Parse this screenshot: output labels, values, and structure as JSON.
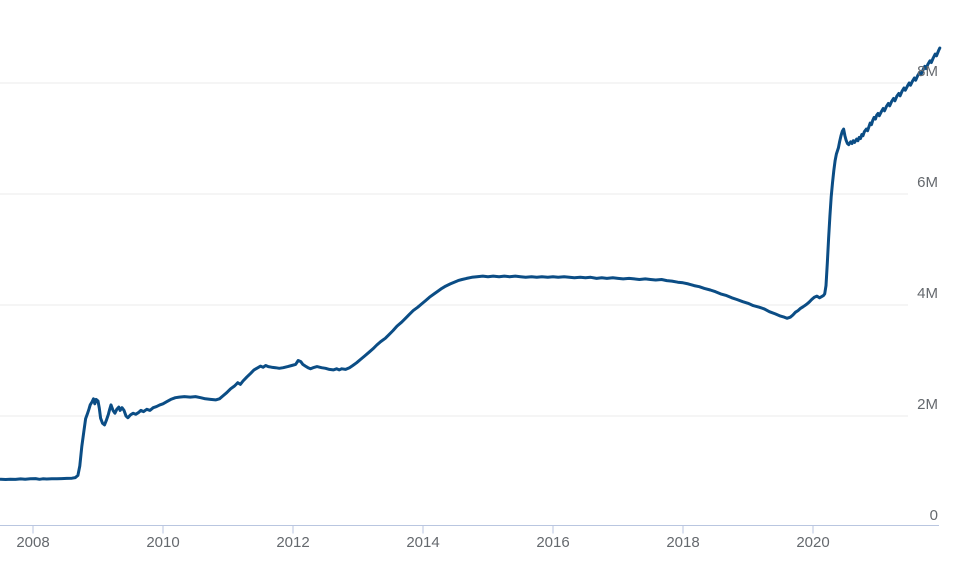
{
  "chart_data": {
    "type": "line",
    "title": "",
    "x_axis": {
      "tick_labels": [
        "2008",
        "2010",
        "2012",
        "2014",
        "2016",
        "2018",
        "2020"
      ],
      "tick_values": [
        2008,
        2010,
        2012,
        2014,
        2016,
        2018,
        2020
      ],
      "range": [
        2007.49,
        2021.97
      ],
      "grid": false
    },
    "y_axis": {
      "tick_labels": [
        "0",
        "2M",
        "4M",
        "6M",
        "8M"
      ],
      "tick_values": [
        0,
        2,
        4,
        6,
        8
      ],
      "range": [
        0,
        9.5
      ],
      "grid": true,
      "labels_position": "right"
    },
    "legend": "none",
    "series": [
      {
        "points": [
          [
            2007.5,
            0.86
          ],
          [
            2007.58,
            0.855
          ],
          [
            2007.65,
            0.862
          ],
          [
            2007.73,
            0.858
          ],
          [
            2007.81,
            0.866
          ],
          [
            2007.88,
            0.862
          ],
          [
            2007.96,
            0.87
          ],
          [
            2008.04,
            0.872
          ],
          [
            2008.1,
            0.86
          ],
          [
            2008.15,
            0.868
          ],
          [
            2008.21,
            0.865
          ],
          [
            2008.29,
            0.87
          ],
          [
            2008.37,
            0.868
          ],
          [
            2008.44,
            0.872
          ],
          [
            2008.52,
            0.875
          ],
          [
            2008.6,
            0.88
          ],
          [
            2008.65,
            0.89
          ],
          [
            2008.69,
            0.93
          ],
          [
            2008.72,
            1.1
          ],
          [
            2008.75,
            1.45
          ],
          [
            2008.78,
            1.7
          ],
          [
            2008.81,
            1.95
          ],
          [
            2008.84,
            2.05
          ],
          [
            2008.86,
            2.12
          ],
          [
            2008.88,
            2.2
          ],
          [
            2008.91,
            2.26
          ],
          [
            2008.93,
            2.31
          ],
          [
            2008.95,
            2.22
          ],
          [
            2008.97,
            2.3
          ],
          [
            2009.0,
            2.27
          ],
          [
            2009.02,
            2.14
          ],
          [
            2009.04,
            1.96
          ],
          [
            2009.07,
            1.87
          ],
          [
            2009.1,
            1.84
          ],
          [
            2009.13,
            1.93
          ],
          [
            2009.16,
            2.03
          ],
          [
            2009.18,
            2.12
          ],
          [
            2009.2,
            2.2
          ],
          [
            2009.23,
            2.1
          ],
          [
            2009.26,
            2.05
          ],
          [
            2009.29,
            2.12
          ],
          [
            2009.32,
            2.16
          ],
          [
            2009.34,
            2.1
          ],
          [
            2009.37,
            2.15
          ],
          [
            2009.4,
            2.1
          ],
          [
            2009.43,
            2.0
          ],
          [
            2009.46,
            1.97
          ],
          [
            2009.5,
            2.02
          ],
          [
            2009.54,
            2.05
          ],
          [
            2009.58,
            2.03
          ],
          [
            2009.62,
            2.06
          ],
          [
            2009.66,
            2.1
          ],
          [
            2009.7,
            2.08
          ],
          [
            2009.75,
            2.12
          ],
          [
            2009.8,
            2.1
          ],
          [
            2009.85,
            2.15
          ],
          [
            2009.9,
            2.17
          ],
          [
            2009.95,
            2.2
          ],
          [
            2010.0,
            2.22
          ],
          [
            2010.06,
            2.26
          ],
          [
            2010.12,
            2.3
          ],
          [
            2010.19,
            2.33
          ],
          [
            2010.25,
            2.34
          ],
          [
            2010.33,
            2.35
          ],
          [
            2010.42,
            2.34
          ],
          [
            2010.5,
            2.35
          ],
          [
            2010.58,
            2.33
          ],
          [
            2010.65,
            2.31
          ],
          [
            2010.73,
            2.3
          ],
          [
            2010.81,
            2.29
          ],
          [
            2010.87,
            2.31
          ],
          [
            2010.92,
            2.36
          ],
          [
            2010.98,
            2.42
          ],
          [
            2011.04,
            2.49
          ],
          [
            2011.1,
            2.54
          ],
          [
            2011.15,
            2.6
          ],
          [
            2011.19,
            2.57
          ],
          [
            2011.23,
            2.63
          ],
          [
            2011.29,
            2.7
          ],
          [
            2011.35,
            2.77
          ],
          [
            2011.4,
            2.83
          ],
          [
            2011.46,
            2.87
          ],
          [
            2011.5,
            2.9
          ],
          [
            2011.54,
            2.88
          ],
          [
            2011.58,
            2.91
          ],
          [
            2011.62,
            2.89
          ],
          [
            2011.67,
            2.88
          ],
          [
            2011.73,
            2.87
          ],
          [
            2011.79,
            2.86
          ],
          [
            2011.85,
            2.87
          ],
          [
            2011.92,
            2.89
          ],
          [
            2011.98,
            2.91
          ],
          [
            2012.04,
            2.93
          ],
          [
            2012.08,
            3.0
          ],
          [
            2012.12,
            2.98
          ],
          [
            2012.15,
            2.93
          ],
          [
            2012.19,
            2.9
          ],
          [
            2012.23,
            2.87
          ],
          [
            2012.27,
            2.85
          ],
          [
            2012.31,
            2.87
          ],
          [
            2012.37,
            2.89
          ],
          [
            2012.44,
            2.87
          ],
          [
            2012.5,
            2.86
          ],
          [
            2012.56,
            2.84
          ],
          [
            2012.62,
            2.83
          ],
          [
            2012.67,
            2.85
          ],
          [
            2012.71,
            2.83
          ],
          [
            2012.75,
            2.85
          ],
          [
            2012.81,
            2.84
          ],
          [
            2012.87,
            2.87
          ],
          [
            2012.92,
            2.91
          ],
          [
            2012.98,
            2.96
          ],
          [
            2013.04,
            3.02
          ],
          [
            2013.1,
            3.08
          ],
          [
            2013.17,
            3.15
          ],
          [
            2013.23,
            3.21
          ],
          [
            2013.29,
            3.28
          ],
          [
            2013.35,
            3.34
          ],
          [
            2013.42,
            3.4
          ],
          [
            2013.48,
            3.47
          ],
          [
            2013.54,
            3.54
          ],
          [
            2013.6,
            3.62
          ],
          [
            2013.67,
            3.69
          ],
          [
            2013.73,
            3.76
          ],
          [
            2013.79,
            3.83
          ],
          [
            2013.85,
            3.9
          ],
          [
            2013.92,
            3.96
          ],
          [
            2013.98,
            4.02
          ],
          [
            2014.04,
            4.08
          ],
          [
            2014.1,
            4.14
          ],
          [
            2014.17,
            4.2
          ],
          [
            2014.23,
            4.25
          ],
          [
            2014.29,
            4.3
          ],
          [
            2014.35,
            4.34
          ],
          [
            2014.42,
            4.38
          ],
          [
            2014.48,
            4.41
          ],
          [
            2014.54,
            4.44
          ],
          [
            2014.6,
            4.46
          ],
          [
            2014.67,
            4.48
          ],
          [
            2014.75,
            4.5
          ],
          [
            2014.83,
            4.51
          ],
          [
            2014.92,
            4.52
          ],
          [
            2015.0,
            4.51
          ],
          [
            2015.08,
            4.52
          ],
          [
            2015.17,
            4.51
          ],
          [
            2015.25,
            4.52
          ],
          [
            2015.33,
            4.51
          ],
          [
            2015.42,
            4.52
          ],
          [
            2015.5,
            4.51
          ],
          [
            2015.58,
            4.5
          ],
          [
            2015.67,
            4.51
          ],
          [
            2015.75,
            4.5
          ],
          [
            2015.83,
            4.51
          ],
          [
            2015.92,
            4.5
          ],
          [
            2016.0,
            4.51
          ],
          [
            2016.08,
            4.5
          ],
          [
            2016.17,
            4.51
          ],
          [
            2016.25,
            4.5
          ],
          [
            2016.33,
            4.49
          ],
          [
            2016.42,
            4.5
          ],
          [
            2016.5,
            4.49
          ],
          [
            2016.58,
            4.5
          ],
          [
            2016.67,
            4.48
          ],
          [
            2016.75,
            4.49
          ],
          [
            2016.83,
            4.48
          ],
          [
            2016.92,
            4.49
          ],
          [
            2017.0,
            4.48
          ],
          [
            2017.08,
            4.47
          ],
          [
            2017.17,
            4.48
          ],
          [
            2017.25,
            4.47
          ],
          [
            2017.33,
            4.46
          ],
          [
            2017.42,
            4.47
          ],
          [
            2017.5,
            4.46
          ],
          [
            2017.58,
            4.45
          ],
          [
            2017.67,
            4.46
          ],
          [
            2017.75,
            4.44
          ],
          [
            2017.83,
            4.43
          ],
          [
            2017.92,
            4.41
          ],
          [
            2018.0,
            4.4
          ],
          [
            2018.08,
            4.38
          ],
          [
            2018.17,
            4.35
          ],
          [
            2018.25,
            4.33
          ],
          [
            2018.33,
            4.3
          ],
          [
            2018.42,
            4.27
          ],
          [
            2018.5,
            4.24
          ],
          [
            2018.58,
            4.2
          ],
          [
            2018.67,
            4.17
          ],
          [
            2018.75,
            4.13
          ],
          [
            2018.83,
            4.1
          ],
          [
            2018.92,
            4.06
          ],
          [
            2019.0,
            4.03
          ],
          [
            2019.08,
            3.99
          ],
          [
            2019.17,
            3.96
          ],
          [
            2019.25,
            3.93
          ],
          [
            2019.33,
            3.88
          ],
          [
            2019.42,
            3.84
          ],
          [
            2019.5,
            3.8
          ],
          [
            2019.56,
            3.78
          ],
          [
            2019.6,
            3.76
          ],
          [
            2019.65,
            3.78
          ],
          [
            2019.69,
            3.82
          ],
          [
            2019.73,
            3.87
          ],
          [
            2019.77,
            3.9
          ],
          [
            2019.81,
            3.94
          ],
          [
            2019.85,
            3.97
          ],
          [
            2019.9,
            4.01
          ],
          [
            2019.94,
            4.05
          ],
          [
            2019.98,
            4.1
          ],
          [
            2020.02,
            4.14
          ],
          [
            2020.06,
            4.16
          ],
          [
            2020.1,
            4.13
          ],
          [
            2020.13,
            4.15
          ],
          [
            2020.16,
            4.17
          ],
          [
            2020.18,
            4.2
          ],
          [
            2020.2,
            4.35
          ],
          [
            2020.22,
            4.75
          ],
          [
            2020.24,
            5.2
          ],
          [
            2020.26,
            5.6
          ],
          [
            2020.28,
            5.95
          ],
          [
            2020.3,
            6.2
          ],
          [
            2020.32,
            6.42
          ],
          [
            2020.34,
            6.6
          ],
          [
            2020.36,
            6.72
          ],
          [
            2020.39,
            6.83
          ],
          [
            2020.41,
            6.95
          ],
          [
            2020.43,
            7.05
          ],
          [
            2020.45,
            7.13
          ],
          [
            2020.47,
            7.17
          ],
          [
            2020.49,
            7.05
          ],
          [
            2020.51,
            6.97
          ],
          [
            2020.53,
            6.91
          ],
          [
            2020.55,
            6.89
          ],
          [
            2020.58,
            6.94
          ],
          [
            2020.6,
            6.91
          ],
          [
            2020.62,
            6.96
          ],
          [
            2020.64,
            6.93
          ],
          [
            2020.67,
            6.99
          ],
          [
            2020.69,
            6.96
          ],
          [
            2020.71,
            7.02
          ],
          [
            2020.73,
            7.0
          ],
          [
            2020.75,
            7.07
          ],
          [
            2020.77,
            7.05
          ],
          [
            2020.79,
            7.12
          ],
          [
            2020.82,
            7.17
          ],
          [
            2020.84,
            7.14
          ],
          [
            2020.86,
            7.21
          ],
          [
            2020.88,
            7.28
          ],
          [
            2020.9,
            7.25
          ],
          [
            2020.92,
            7.33
          ],
          [
            2020.94,
            7.38
          ],
          [
            2020.96,
            7.35
          ],
          [
            2020.98,
            7.42
          ],
          [
            2021.0,
            7.45
          ],
          [
            2021.02,
            7.41
          ],
          [
            2021.05,
            7.48
          ],
          [
            2021.08,
            7.54
          ],
          [
            2021.1,
            7.5
          ],
          [
            2021.13,
            7.58
          ],
          [
            2021.16,
            7.63
          ],
          [
            2021.18,
            7.59
          ],
          [
            2021.21,
            7.67
          ],
          [
            2021.24,
            7.72
          ],
          [
            2021.26,
            7.68
          ],
          [
            2021.29,
            7.76
          ],
          [
            2021.32,
            7.81
          ],
          [
            2021.34,
            7.77
          ],
          [
            2021.37,
            7.85
          ],
          [
            2021.4,
            7.91
          ],
          [
            2021.42,
            7.87
          ],
          [
            2021.45,
            7.94
          ],
          [
            2021.48,
            8.0
          ],
          [
            2021.5,
            7.96
          ],
          [
            2021.53,
            8.03
          ],
          [
            2021.56,
            8.09
          ],
          [
            2021.58,
            8.05
          ],
          [
            2021.61,
            8.13
          ],
          [
            2021.64,
            8.19
          ],
          [
            2021.66,
            8.15
          ],
          [
            2021.69,
            8.23
          ],
          [
            2021.72,
            8.3
          ],
          [
            2021.74,
            8.26
          ],
          [
            2021.77,
            8.34
          ],
          [
            2021.8,
            8.4
          ],
          [
            2021.82,
            8.37
          ],
          [
            2021.85,
            8.45
          ],
          [
            2021.88,
            8.52
          ],
          [
            2021.9,
            8.49
          ],
          [
            2021.93,
            8.58
          ],
          [
            2021.95,
            8.63
          ]
        ]
      }
    ],
    "colors": {
      "line": "#0b4d85",
      "gridline": "#ebebeb",
      "axis": "#b9c6e0",
      "tick_label": "#65696e",
      "background": "#ffffff"
    }
  }
}
